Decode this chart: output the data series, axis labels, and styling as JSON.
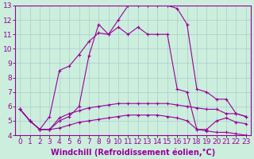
{
  "bg_color": "#cceedd",
  "line_color": "#990099",
  "grid_color": "#aacccc",
  "xlabel": "Windchill (Refroidissement éolien,°C)",
  "xlabel_fontsize": 7.0,
  "tick_fontsize": 6.5,
  "xlim": [
    -0.5,
    23.5
  ],
  "ylim": [
    4,
    13
  ],
  "yticks": [
    4,
    5,
    6,
    7,
    8,
    9,
    10,
    11,
    12,
    13
  ],
  "xticks": [
    0,
    1,
    2,
    3,
    4,
    5,
    6,
    7,
    8,
    9,
    10,
    11,
    12,
    13,
    14,
    15,
    16,
    17,
    18,
    19,
    20,
    21,
    22,
    23
  ],
  "series": [
    {
      "x": [
        0,
        1,
        2,
        3,
        4,
        5,
        6,
        7,
        8,
        9,
        10,
        11,
        12,
        13,
        14,
        15,
        16,
        17,
        18,
        19,
        20,
        21,
        22,
        23
      ],
      "y": [
        5.8,
        5.0,
        4.4,
        5.3,
        8.5,
        8.8,
        9.6,
        10.5,
        11.1,
        11.0,
        12.0,
        13.0,
        13.0,
        13.0,
        13.0,
        13.0,
        12.8,
        11.7,
        7.2,
        7.0,
        6.5,
        6.5,
        5.5,
        5.3
      ]
    },
    {
      "x": [
        0,
        1,
        2,
        3,
        4,
        5,
        6,
        7,
        8,
        9,
        10,
        11,
        12,
        13,
        14,
        15,
        16,
        17,
        18,
        19,
        20,
        21,
        22,
        23
      ],
      "y": [
        5.8,
        5.0,
        4.4,
        4.4,
        5.2,
        5.5,
        5.7,
        5.9,
        6.0,
        6.1,
        6.2,
        6.2,
        6.2,
        6.2,
        6.2,
        6.2,
        6.1,
        6.0,
        5.9,
        5.8,
        5.8,
        5.5,
        5.5,
        5.3
      ]
    },
    {
      "x": [
        0,
        1,
        2,
        3,
        4,
        5,
        6,
        7,
        8,
        9,
        10,
        11,
        12,
        13,
        14,
        15,
        16,
        17,
        18,
        19,
        20,
        21,
        22,
        23
      ],
      "y": [
        5.8,
        5.0,
        4.4,
        4.4,
        4.5,
        4.7,
        4.9,
        5.0,
        5.1,
        5.2,
        5.3,
        5.4,
        5.4,
        5.4,
        5.4,
        5.3,
        5.2,
        5.0,
        4.4,
        4.3,
        4.2,
        4.2,
        4.1,
        4.0
      ]
    },
    {
      "x": [
        0,
        1,
        2,
        3,
        4,
        5,
        6,
        7,
        8,
        9,
        10,
        11,
        12,
        13,
        14,
        15,
        16,
        17,
        18,
        19,
        20,
        21,
        22,
        23
      ],
      "y": [
        5.8,
        5.0,
        4.4,
        4.4,
        5.0,
        5.3,
        6.0,
        9.5,
        11.7,
        11.0,
        11.5,
        11.0,
        11.5,
        11.0,
        11.0,
        11.0,
        7.2,
        7.0,
        4.4,
        4.4,
        5.0,
        5.2,
        4.9,
        4.8
      ]
    }
  ]
}
